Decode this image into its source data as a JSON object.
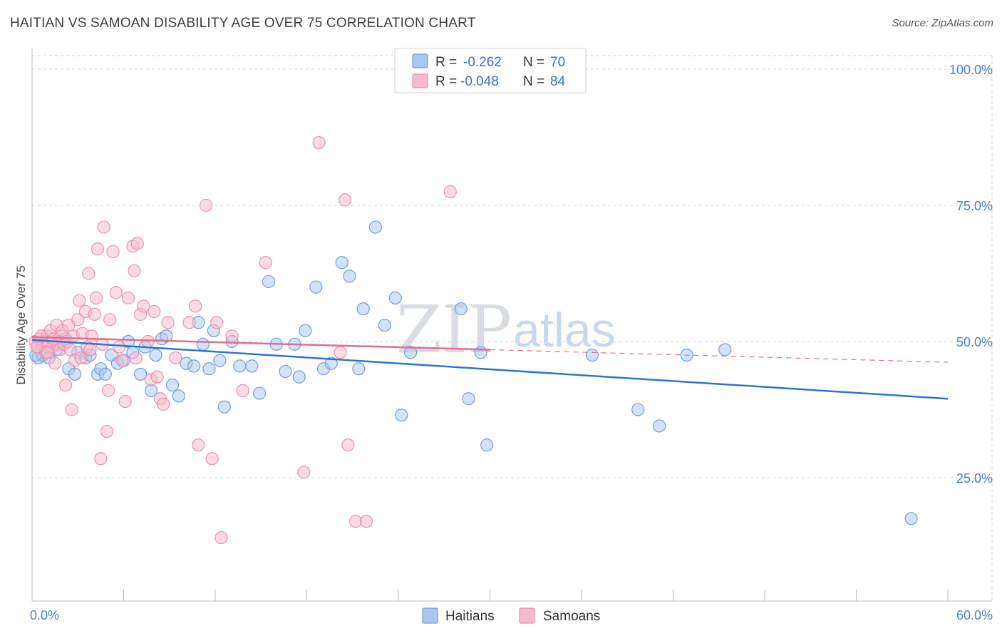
{
  "title": "HAITIAN VS SAMOAN DISABILITY AGE OVER 75 CORRELATION CHART",
  "source": "Source: ZipAtlas.com",
  "watermark": {
    "part1": "ZIP",
    "part2": "atlas"
  },
  "colors": {
    "haitians_fill": "#a9c6ef",
    "haitians_stroke": "#6f9ee0",
    "haitians_line": "#2f74d0",
    "samoans_fill": "#f7b9cc",
    "samoans_stroke": "#ee8fae",
    "samoans_line": "#e46c93",
    "tick_label": "#4a7fd0",
    "grid": "#d8d8d8"
  },
  "legend": {
    "rows": [
      {
        "r_label": "R =",
        "r_value": "-0.262",
        "n_label": "N =",
        "n_value": "70"
      },
      {
        "r_label": "R =",
        "r_value": "-0.048",
        "n_label": "N =",
        "n_value": "84"
      }
    ]
  },
  "bottom_legend": [
    "Haitians",
    "Samoans"
  ],
  "chart_data": {
    "type": "scatter",
    "title": "HAITIAN VS SAMOAN DISABILITY AGE OVER 75 CORRELATION CHART",
    "xlabel": "",
    "ylabel": "Disability Age Over 75",
    "xlim": [
      0,
      60
    ],
    "ylim": [
      0,
      105
    ],
    "x_tick_labels": [
      "0.0%",
      "60.0%"
    ],
    "y_ticks": [
      25,
      50,
      75,
      100
    ],
    "y_tick_labels": [
      "25.0%",
      "50.0%",
      "75.0%",
      "100.0%"
    ],
    "grid": true,
    "legend_position": "top-center",
    "series": [
      {
        "name": "Haitians",
        "r": -0.262,
        "n": 70,
        "trend": {
          "x": [
            0,
            60
          ],
          "y": [
            50.3,
            39.5
          ],
          "dashed_from": null
        },
        "points": [
          [
            0.4,
            47
          ],
          [
            0.7,
            47.5
          ],
          [
            0.9,
            48
          ],
          [
            1.1,
            47
          ],
          [
            1.3,
            49
          ],
          [
            1.6,
            48.5
          ],
          [
            1.8,
            50
          ],
          [
            2.2,
            50.5
          ],
          [
            2.4,
            45
          ],
          [
            2.8,
            44
          ],
          [
            3.0,
            48
          ],
          [
            3.5,
            47
          ],
          [
            3.8,
            47.5
          ],
          [
            4.3,
            44
          ],
          [
            4.5,
            45
          ],
          [
            4.8,
            44
          ],
          [
            5.2,
            47.5
          ],
          [
            5.6,
            46
          ],
          [
            6.0,
            46.5
          ],
          [
            6.3,
            50
          ],
          [
            6.6,
            48
          ],
          [
            7.1,
            44
          ],
          [
            7.4,
            49
          ],
          [
            7.8,
            41
          ],
          [
            8.1,
            47.5
          ],
          [
            8.5,
            50.5
          ],
          [
            8.8,
            51
          ],
          [
            9.2,
            42
          ],
          [
            9.6,
            40
          ],
          [
            10.1,
            46
          ],
          [
            10.6,
            45.5
          ],
          [
            10.9,
            53.5
          ],
          [
            11.2,
            49.5
          ],
          [
            11.6,
            45
          ],
          [
            11.9,
            52
          ],
          [
            12.3,
            46.5
          ],
          [
            12.6,
            38
          ],
          [
            13.1,
            50
          ],
          [
            13.6,
            45.5
          ],
          [
            14.4,
            45.5
          ],
          [
            14.9,
            40.5
          ],
          [
            15.5,
            61
          ],
          [
            16.0,
            49.5
          ],
          [
            16.6,
            44.5
          ],
          [
            17.2,
            49.5
          ],
          [
            17.5,
            43.5
          ],
          [
            17.9,
            52
          ],
          [
            18.6,
            60
          ],
          [
            19.1,
            45
          ],
          [
            19.6,
            46
          ],
          [
            20.3,
            64.5
          ],
          [
            20.8,
            62
          ],
          [
            21.4,
            45
          ],
          [
            21.7,
            56
          ],
          [
            22.5,
            71
          ],
          [
            23.1,
            53
          ],
          [
            23.8,
            58
          ],
          [
            24.2,
            36.5
          ],
          [
            24.8,
            48
          ],
          [
            28.1,
            56
          ],
          [
            28.6,
            39.5
          ],
          [
            29.4,
            48
          ],
          [
            29.8,
            31
          ],
          [
            36.7,
            47.5
          ],
          [
            39.7,
            37.5
          ],
          [
            41.1,
            34.5
          ],
          [
            42.9,
            47.5
          ],
          [
            45.4,
            48.5
          ],
          [
            57.6,
            17.5
          ],
          [
            0.25,
            47.5
          ]
        ]
      },
      {
        "name": "Samoans",
        "r": -0.048,
        "n": 84,
        "trend": {
          "x": [
            0,
            60
          ],
          "y": [
            50.8,
            46.2
          ],
          "dashed_from": 30
        },
        "points": [
          [
            0.2,
            50
          ],
          [
            0.4,
            49
          ],
          [
            0.5,
            50.5
          ],
          [
            0.7,
            49.5
          ],
          [
            0.8,
            50
          ],
          [
            0.9,
            48
          ],
          [
            1.0,
            51
          ],
          [
            1.1,
            50
          ],
          [
            1.2,
            52
          ],
          [
            1.3,
            49
          ],
          [
            1.4,
            50.5
          ],
          [
            1.5,
            46
          ],
          [
            1.6,
            53
          ],
          [
            1.7,
            49.5
          ],
          [
            1.8,
            48.5
          ],
          [
            1.9,
            51
          ],
          [
            2.0,
            52
          ],
          [
            2.1,
            49.5
          ],
          [
            2.2,
            42
          ],
          [
            2.3,
            50
          ],
          [
            2.4,
            53
          ],
          [
            2.5,
            48.5
          ],
          [
            2.6,
            37.5
          ],
          [
            2.7,
            51
          ],
          [
            2.8,
            46.5
          ],
          [
            3.0,
            54
          ],
          [
            3.1,
            57.5
          ],
          [
            3.2,
            47
          ],
          [
            3.3,
            51.5
          ],
          [
            3.5,
            55.5
          ],
          [
            3.6,
            49
          ],
          [
            3.7,
            62.5
          ],
          [
            3.8,
            48.5
          ],
          [
            3.9,
            51
          ],
          [
            4.1,
            55
          ],
          [
            4.2,
            58
          ],
          [
            4.3,
            67
          ],
          [
            4.5,
            28.5
          ],
          [
            4.6,
            49.5
          ],
          [
            4.7,
            71
          ],
          [
            4.9,
            33.5
          ],
          [
            5.0,
            41
          ],
          [
            5.1,
            54
          ],
          [
            5.3,
            66.5
          ],
          [
            5.5,
            59
          ],
          [
            5.7,
            49
          ],
          [
            5.9,
            46.5
          ],
          [
            6.1,
            39
          ],
          [
            6.3,
            58
          ],
          [
            6.6,
            67.5
          ],
          [
            6.7,
            63
          ],
          [
            6.8,
            47
          ],
          [
            6.9,
            68
          ],
          [
            7.1,
            55
          ],
          [
            7.3,
            56.5
          ],
          [
            7.6,
            50
          ],
          [
            7.8,
            43
          ],
          [
            8.0,
            55.5
          ],
          [
            8.2,
            43.5
          ],
          [
            8.4,
            39.5
          ],
          [
            8.6,
            38.5
          ],
          [
            8.9,
            53.5
          ],
          [
            9.4,
            47
          ],
          [
            10.3,
            53.5
          ],
          [
            10.7,
            56.5
          ],
          [
            10.9,
            31
          ],
          [
            11.4,
            75
          ],
          [
            11.8,
            28.5
          ],
          [
            12.1,
            53.5
          ],
          [
            12.4,
            14
          ],
          [
            13.1,
            51
          ],
          [
            13.8,
            41
          ],
          [
            15.3,
            64.5
          ],
          [
            17.8,
            26
          ],
          [
            18.8,
            86.5
          ],
          [
            20.2,
            48
          ],
          [
            20.5,
            76
          ],
          [
            20.7,
            31
          ],
          [
            21.2,
            17
          ],
          [
            21.9,
            17
          ],
          [
            27.4,
            77.5
          ],
          [
            0.3,
            49
          ],
          [
            0.6,
            51
          ],
          [
            1.0,
            48
          ]
        ]
      }
    ]
  }
}
